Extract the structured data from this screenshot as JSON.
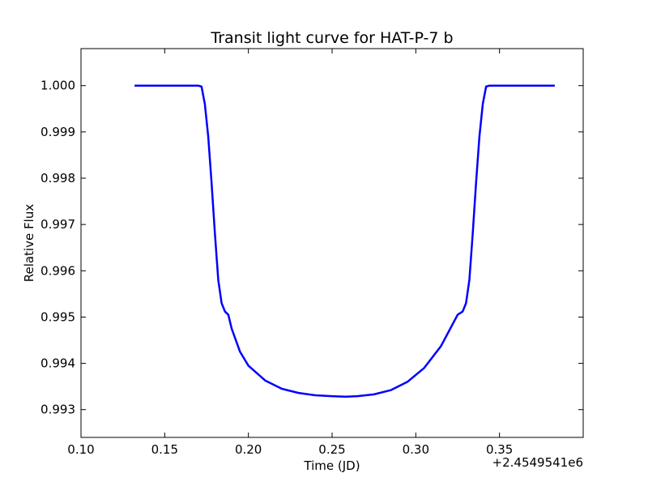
{
  "chart_data": {
    "type": "line",
    "title": "Transit light curve for HAT-P-7 b",
    "xlabel": "Time (JD)",
    "ylabel": "Relative Flux",
    "x_offset_label": "+2.4549541e6",
    "xlim": [
      0.1,
      0.4
    ],
    "ylim": [
      0.9924,
      1.0008
    ],
    "x_ticks": [
      0.1,
      0.15,
      0.2,
      0.25,
      0.3,
      0.35
    ],
    "x_tick_labels": [
      "0.10",
      "0.15",
      "0.20",
      "0.25",
      "0.30",
      "0.35"
    ],
    "y_ticks": [
      0.993,
      0.994,
      0.995,
      0.996,
      0.997,
      0.998,
      0.999,
      1.0
    ],
    "y_tick_labels": [
      "0.993",
      "0.994",
      "0.995",
      "0.996",
      "0.997",
      "0.998",
      "0.999",
      "1.000"
    ],
    "grid": false,
    "series": [
      {
        "color": "#0000ff",
        "x": [
          0.132,
          0.15,
          0.16,
          0.17,
          0.172,
          0.174,
          0.176,
          0.178,
          0.18,
          0.182,
          0.184,
          0.186,
          0.188,
          0.19,
          0.195,
          0.2,
          0.21,
          0.22,
          0.23,
          0.24,
          0.25,
          0.258,
          0.265,
          0.275,
          0.285,
          0.295,
          0.305,
          0.315,
          0.32,
          0.325,
          0.328,
          0.33,
          0.332,
          0.334,
          0.336,
          0.338,
          0.34,
          0.342,
          0.344,
          0.346,
          0.355,
          0.37,
          0.383
        ],
        "y": [
          1.0,
          1.0,
          1.0,
          1.0,
          0.99998,
          0.9996,
          0.9989,
          0.9979,
          0.9968,
          0.9958,
          0.9953,
          0.99512,
          0.99505,
          0.99475,
          0.99425,
          0.99395,
          0.99363,
          0.99345,
          0.99336,
          0.99331,
          0.99329,
          0.99328,
          0.99329,
          0.99333,
          0.99342,
          0.9936,
          0.9939,
          0.99437,
          0.99471,
          0.99505,
          0.99512,
          0.9953,
          0.9958,
          0.9968,
          0.9979,
          0.9989,
          0.9996,
          0.99998,
          1.0,
          1.0,
          1.0,
          1.0,
          1.0
        ]
      }
    ]
  }
}
